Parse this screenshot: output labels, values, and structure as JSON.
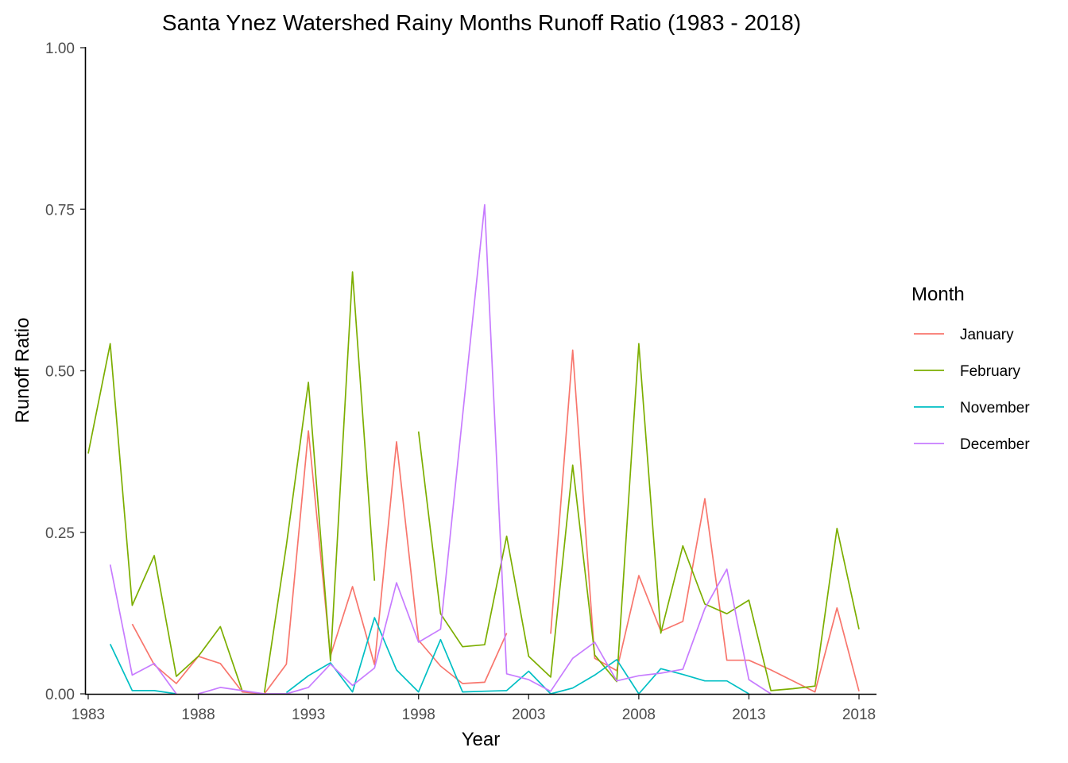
{
  "chart_data": {
    "type": "line",
    "title": "Santa Ynez Watershed Rainy Months Runoff Ratio (1983 - 2018)",
    "xlabel": "Year",
    "ylabel": "Runoff Ratio",
    "xlim": [
      1983,
      2018
    ],
    "ylim": [
      0,
      1
    ],
    "x_ticks": [
      1983,
      1988,
      1993,
      1998,
      2003,
      2008,
      2013,
      2018
    ],
    "y_ticks": [
      0,
      0.25,
      0.5,
      0.75,
      1
    ],
    "y_tick_labels": [
      "0.00",
      "0.25",
      "0.50",
      "0.75",
      "1.00"
    ],
    "grid": false,
    "legend": {
      "title": "Month",
      "position": "right"
    },
    "series": [
      {
        "name": "January",
        "color": "#F8766D",
        "points": [
          [
            1985,
            0.108
          ],
          [
            1986,
            0.045
          ],
          [
            1987,
            0.016
          ],
          [
            1988,
            0.058
          ],
          [
            1989,
            0.047
          ],
          [
            1990,
            0.003
          ],
          [
            1991,
            0.0
          ],
          [
            1992,
            0.046
          ],
          [
            1993,
            0.407
          ],
          [
            1994,
            0.059
          ],
          [
            1995,
            0.166
          ],
          [
            1996,
            0.045
          ],
          [
            1997,
            0.39
          ],
          [
            1998,
            0.083
          ],
          [
            1999,
            0.043
          ],
          [
            2000,
            0.016
          ],
          [
            2001,
            0.018
          ],
          [
            2002,
            0.094
          ],
          null,
          [
            2004,
            0.093
          ],
          [
            2005,
            0.532
          ],
          [
            2006,
            0.055
          ],
          [
            2007,
            0.036
          ],
          [
            2008,
            0.183
          ],
          [
            2009,
            0.097
          ],
          [
            2010,
            0.112
          ],
          [
            2011,
            0.302
          ],
          [
            2012,
            0.052
          ],
          [
            2013,
            0.052
          ],
          [
            2014,
            0.037
          ],
          [
            2015,
            0.02
          ],
          [
            2016,
            0.003
          ],
          [
            2017,
            0.133
          ],
          [
            2018,
            0.004
          ]
        ]
      },
      {
        "name": "February",
        "color": "#7CAE00",
        "points": [
          [
            1983,
            0.372
          ],
          [
            1984,
            0.542
          ],
          [
            1985,
            0.137
          ],
          [
            1986,
            0.214
          ],
          [
            1987,
            0.027
          ],
          [
            1988,
            0.058
          ],
          [
            1989,
            0.104
          ],
          [
            1990,
            0.004
          ],
          null,
          [
            1991,
            0.002
          ],
          [
            1992,
            0.23
          ],
          [
            1993,
            0.482
          ],
          [
            1994,
            0.051
          ],
          [
            1995,
            0.653
          ],
          [
            1996,
            0.175
          ],
          null,
          [
            1998,
            0.406
          ],
          [
            1999,
            0.124
          ],
          [
            2000,
            0.073
          ],
          [
            2001,
            0.076
          ],
          [
            2002,
            0.244
          ],
          [
            2003,
            0.058
          ],
          [
            2004,
            0.026
          ],
          [
            2005,
            0.354
          ],
          [
            2006,
            0.06
          ],
          [
            2007,
            0.019
          ],
          [
            2008,
            0.542
          ],
          [
            2009,
            0.094
          ],
          [
            2010,
            0.229
          ],
          [
            2011,
            0.139
          ],
          [
            2012,
            0.124
          ],
          [
            2013,
            0.145
          ],
          [
            2014,
            0.005
          ],
          [
            2015,
            0.008
          ],
          [
            2016,
            0.012
          ],
          [
            2017,
            0.256
          ],
          [
            2018,
            0.1
          ]
        ]
      },
      {
        "name": "November",
        "color": "#00BFC4",
        "points": [
          [
            1984,
            0.077
          ],
          [
            1985,
            0.005
          ],
          [
            1986,
            0.005
          ],
          [
            1987,
            0.0
          ],
          null,
          [
            1992,
            0.002
          ],
          [
            1993,
            0.028
          ],
          [
            1994,
            0.048
          ],
          [
            1995,
            0.003
          ],
          [
            1996,
            0.118
          ],
          [
            1997,
            0.037
          ],
          [
            1998,
            0.003
          ],
          [
            1999,
            0.084
          ],
          [
            2000,
            0.003
          ],
          [
            2001,
            0.004
          ],
          [
            2002,
            0.005
          ],
          [
            2003,
            0.035
          ],
          [
            2004,
            0.0
          ],
          [
            2005,
            0.009
          ],
          [
            2006,
            0.029
          ],
          [
            2007,
            0.053
          ],
          [
            2008,
            0.0
          ],
          [
            2009,
            0.039
          ],
          [
            2010,
            0.03
          ],
          [
            2011,
            0.02
          ],
          [
            2012,
            0.02
          ],
          [
            2013,
            0.0
          ]
        ]
      },
      {
        "name": "December",
        "color": "#C77CFF",
        "points": [
          [
            1984,
            0.2
          ],
          [
            1985,
            0.029
          ],
          [
            1986,
            0.047
          ],
          [
            1987,
            0.0
          ],
          null,
          [
            1988,
            0.0
          ],
          [
            1989,
            0.01
          ],
          [
            1990,
            0.005
          ],
          [
            1991,
            0.0
          ],
          [
            1992,
            0.0
          ],
          [
            1993,
            0.01
          ],
          [
            1994,
            0.046
          ],
          [
            1995,
            0.013
          ],
          [
            1996,
            0.04
          ],
          [
            1997,
            0.172
          ],
          [
            1998,
            0.08
          ],
          [
            1999,
            0.1
          ],
          [
            2000,
            0.43
          ],
          [
            2001,
            0.757
          ],
          [
            2002,
            0.031
          ],
          [
            2003,
            0.022
          ],
          [
            2004,
            0.004
          ],
          [
            2005,
            0.055
          ],
          [
            2006,
            0.08
          ],
          [
            2007,
            0.02
          ],
          [
            2008,
            0.028
          ],
          [
            2009,
            0.032
          ],
          [
            2010,
            0.038
          ],
          [
            2011,
            0.132
          ],
          [
            2012,
            0.193
          ],
          [
            2013,
            0.022
          ],
          [
            2014,
            0.0
          ]
        ]
      }
    ]
  }
}
